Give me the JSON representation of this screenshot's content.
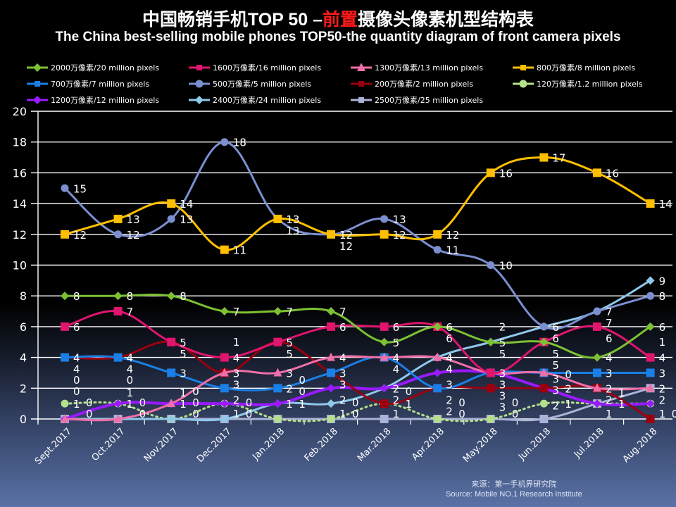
{
  "chart_data": {
    "type": "line",
    "title": "中国畅销手机TOP 50 –前置摄像头像素机型结构表",
    "title_parts": [
      "中国畅销手机TOP 50 –",
      "前置",
      "摄像头像素机型结构表"
    ],
    "subtitle": "The China best-selling mobile phones TOP50-the quantity diagram of front camera pixels",
    "xlabel": "",
    "ylabel": "",
    "ylim": [
      0,
      20
    ],
    "yticks": [
      "0",
      "2",
      "4",
      "6",
      "8",
      "10",
      "12",
      "14",
      "16",
      "18",
      "20"
    ],
    "grid": true,
    "legend_position": "top",
    "categories": [
      "Sept.2017",
      "Oct.2017",
      "Nov.2017",
      "Dec.2017",
      "Jan.2018",
      "Feb.2018",
      "Mar.2018",
      "Apr.2018",
      "May.2018",
      "Jun.2018",
      "Jul.2018",
      "Aug.2018"
    ],
    "series": [
      {
        "name": "2000万像素/20 million pixels",
        "color": "#7cc133",
        "marker": "diamond",
        "values": [
          8,
          8,
          8,
          7,
          7,
          7,
          5,
          6,
          5,
          5,
          4,
          6
        ]
      },
      {
        "name": "1600万像素/16 million pixels",
        "color": "#e0156e",
        "marker": "square",
        "values": [
          6,
          7,
          5,
          4,
          5,
          6,
          6,
          6,
          3,
          5,
          6,
          4
        ]
      },
      {
        "name": "1300万像素/13 million pixels",
        "color": "#f06fa8",
        "marker": "triangle",
        "values": [
          0,
          0,
          1,
          3,
          3,
          4,
          4,
          4,
          3,
          3,
          2,
          2
        ]
      },
      {
        "name": "800万像素/8 million pixels",
        "color": "#ffbf00",
        "marker": "square",
        "values": [
          12,
          13,
          14,
          11,
          13,
          12,
          12,
          12,
          16,
          17,
          16,
          14
        ]
      },
      {
        "name": "700万像素/7 million pixels",
        "color": "#1a7fe6",
        "marker": "square",
        "values": [
          4,
          4,
          3,
          2,
          2,
          3,
          4,
          2,
          3,
          3,
          3,
          3
        ]
      },
      {
        "name": "500万像素/5 million pixels",
        "color": "#7b8fd0",
        "marker": "circle",
        "values": [
          15,
          12,
          13,
          18,
          13,
          12,
          13,
          11,
          10,
          6,
          7,
          8
        ]
      },
      {
        "name": "200万像素/2 million pixels",
        "color": "#9a0010",
        "marker": "square",
        "values": [
          4,
          4,
          5,
          3,
          5,
          3,
          1,
          2,
          2,
          2,
          2,
          0
        ]
      },
      {
        "name": "120万像素/1.2 million pixels",
        "color": "#b4e08a",
        "marker": "circle",
        "values": [
          1,
          1,
          0,
          1,
          0,
          0,
          1,
          0,
          0,
          1,
          1,
          1
        ]
      },
      {
        "name": "1200万像素/12 million pixels",
        "color": "#9a1aff",
        "marker": "diamond",
        "values": [
          0,
          1,
          1,
          1,
          1,
          2,
          2,
          3,
          3,
          2,
          1,
          1
        ]
      },
      {
        "name": "2400万像素/24 million pixels",
        "color": "#8fc8ea",
        "marker": "diamond",
        "values": [
          0,
          0,
          0,
          0,
          1,
          1,
          2,
          4,
          5,
          6,
          7,
          9
        ]
      },
      {
        "name": "2500万像素/25 million pixels",
        "color": "#aab2d8",
        "marker": "square",
        "values": [
          0,
          0,
          0,
          0,
          0,
          0,
          0,
          0,
          0,
          0,
          1,
          2
        ]
      }
    ],
    "source_cn": "来源：第一手机界研究院",
    "source_en": "Source: Mobile NO.1 Research Institute"
  }
}
